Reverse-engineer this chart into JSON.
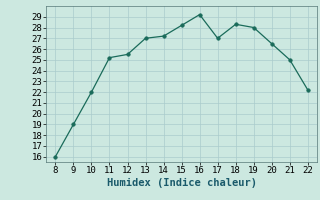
{
  "x": [
    8,
    9,
    10,
    11,
    12,
    13,
    14,
    15,
    16,
    17,
    18,
    19,
    20,
    21,
    22
  ],
  "y": [
    16,
    19,
    22,
    25.2,
    25.5,
    27.0,
    27.2,
    28.2,
    29.2,
    27.0,
    28.3,
    28.0,
    26.5,
    25.0,
    22.2
  ],
  "xlabel": "Humidex (Indice chaleur)",
  "ylim": [
    15.5,
    30
  ],
  "xlim": [
    7.5,
    22.5
  ],
  "yticks": [
    16,
    17,
    18,
    19,
    20,
    21,
    22,
    23,
    24,
    25,
    26,
    27,
    28,
    29
  ],
  "xticks": [
    8,
    9,
    10,
    11,
    12,
    13,
    14,
    15,
    16,
    17,
    18,
    19,
    20,
    21,
    22
  ],
  "line_color": "#1a6b5a",
  "marker_color": "#1a6b5a",
  "bg_color": "#cce8e0",
  "grid_color": "#b0d0c8",
  "font_family": "monospace",
  "tick_fontsize": 6.5,
  "xlabel_fontsize": 7.5
}
